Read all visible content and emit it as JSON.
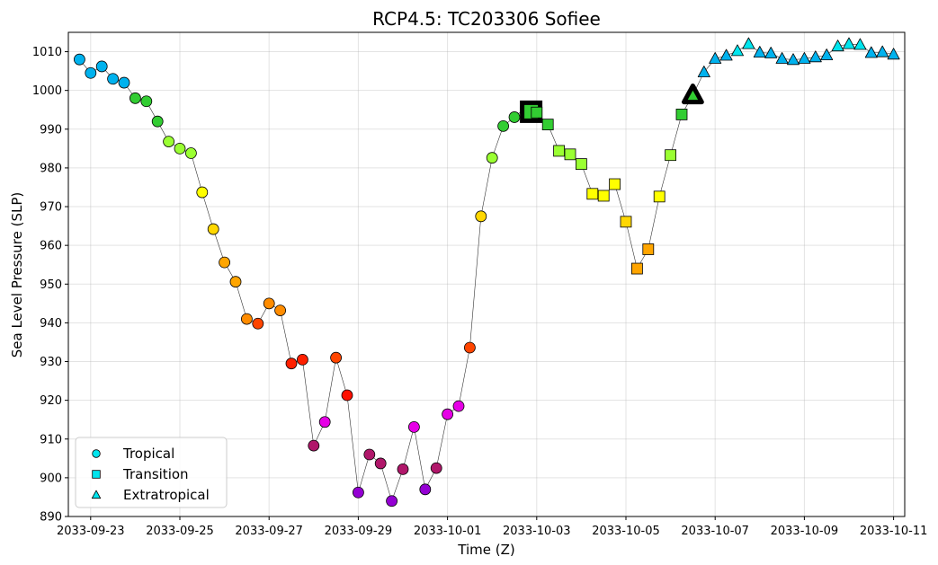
{
  "chart_data": {
    "type": "scatter",
    "title": "RCP4.5: TC203306 Sofiee",
    "xlabel": "Time (Z)",
    "ylabel": "Sea Level Pressure (SLP)",
    "xlim": [
      "2033-09-22T12:00",
      "2033-10-11T06:00"
    ],
    "ylim": [
      890,
      1015
    ],
    "x_ticks": [
      "2033-09-23",
      "2033-09-25",
      "2033-09-27",
      "2033-09-29",
      "2033-10-01",
      "2033-10-03",
      "2033-10-05",
      "2033-10-07",
      "2033-10-09",
      "2033-10-11"
    ],
    "y_ticks": [
      890,
      900,
      910,
      920,
      930,
      940,
      950,
      960,
      970,
      980,
      990,
      1000,
      1010
    ],
    "grid": true,
    "legend": {
      "placement": "lower-left",
      "entries": [
        {
          "label": "Tropical",
          "marker": "circle"
        },
        {
          "label": "Transition",
          "marker": "square"
        },
        {
          "label": "Extratropical",
          "marker": "triangle"
        }
      ],
      "color": "#00e5ee"
    },
    "line_color": "#333333",
    "highlight_color": "#000000",
    "series": [
      {
        "phase": "Tropical",
        "marker": "circle",
        "points": [
          {
            "t": "2033-09-22T18:00",
            "slp": 1008.0,
            "color": "#00b2ee"
          },
          {
            "t": "2033-09-23T00:00",
            "slp": 1004.5,
            "color": "#00b2ee"
          },
          {
            "t": "2033-09-23T06:00",
            "slp": 1006.2,
            "color": "#00b2ee"
          },
          {
            "t": "2033-09-23T12:00",
            "slp": 1003.0,
            "color": "#00b2ee"
          },
          {
            "t": "2033-09-23T18:00",
            "slp": 1002.0,
            "color": "#00b2ee"
          },
          {
            "t": "2033-09-24T00:00",
            "slp": 998.0,
            "color": "#32cd32"
          },
          {
            "t": "2033-09-24T06:00",
            "slp": 997.2,
            "color": "#32cd32"
          },
          {
            "t": "2033-09-24T12:00",
            "slp": 992.0,
            "color": "#32cd32"
          },
          {
            "t": "2033-09-24T18:00",
            "slp": 986.8,
            "color": "#9aff32"
          },
          {
            "t": "2033-09-25T00:00",
            "slp": 985.0,
            "color": "#9aff32"
          },
          {
            "t": "2033-09-25T06:00",
            "slp": 983.8,
            "color": "#9aff32"
          },
          {
            "t": "2033-09-25T12:00",
            "slp": 973.7,
            "color": "#ffff00"
          },
          {
            "t": "2033-09-25T18:00",
            "slp": 964.2,
            "color": "#ffd700"
          },
          {
            "t": "2033-09-26T00:00",
            "slp": 955.6,
            "color": "#ffa500"
          },
          {
            "t": "2033-09-26T06:00",
            "slp": 950.6,
            "color": "#ffa500"
          },
          {
            "t": "2033-09-26T12:00",
            "slp": 941.0,
            "color": "#ff8c00"
          },
          {
            "t": "2033-09-26T18:00",
            "slp": 939.8,
            "color": "#ff4500"
          },
          {
            "t": "2033-09-27T00:00",
            "slp": 945.0,
            "color": "#ff8c00"
          },
          {
            "t": "2033-09-27T06:00",
            "slp": 943.2,
            "color": "#ff8c00"
          },
          {
            "t": "2033-09-27T12:00",
            "slp": 929.5,
            "color": "#ff2000"
          },
          {
            "t": "2033-09-27T18:00",
            "slp": 930.5,
            "color": "#ff2000"
          },
          {
            "t": "2033-09-28T00:00",
            "slp": 908.3,
            "color": "#b0176a"
          },
          {
            "t": "2033-09-28T06:00",
            "slp": 914.4,
            "color": "#e600e6"
          },
          {
            "t": "2033-09-28T12:00",
            "slp": 931.0,
            "color": "#ff4500"
          },
          {
            "t": "2033-09-28T18:00",
            "slp": 921.3,
            "color": "#ff1000"
          },
          {
            "t": "2033-09-29T00:00",
            "slp": 896.2,
            "color": "#9400d3"
          },
          {
            "t": "2033-09-29T06:00",
            "slp": 906.0,
            "color": "#b0176a"
          },
          {
            "t": "2033-09-29T12:00",
            "slp": 903.7,
            "color": "#b0176a"
          },
          {
            "t": "2033-09-29T18:00",
            "slp": 894.0,
            "color": "#9400d3"
          },
          {
            "t": "2033-09-30T00:00",
            "slp": 902.2,
            "color": "#b0176a"
          },
          {
            "t": "2033-09-30T06:00",
            "slp": 913.1,
            "color": "#e600e6"
          },
          {
            "t": "2033-09-30T12:00",
            "slp": 897.0,
            "color": "#9400d3"
          },
          {
            "t": "2033-09-30T18:00",
            "slp": 902.5,
            "color": "#b0176a"
          },
          {
            "t": "2033-10-01T00:00",
            "slp": 916.4,
            "color": "#e600e6"
          },
          {
            "t": "2033-10-01T06:00",
            "slp": 918.5,
            "color": "#e600e6"
          },
          {
            "t": "2033-10-01T12:00",
            "slp": 933.6,
            "color": "#ff4500"
          },
          {
            "t": "2033-10-01T18:00",
            "slp": 967.5,
            "color": "#ffd700"
          },
          {
            "t": "2033-10-02T00:00",
            "slp": 982.6,
            "color": "#9aff32"
          },
          {
            "t": "2033-10-02T06:00",
            "slp": 990.8,
            "color": "#32cd32"
          },
          {
            "t": "2033-10-02T12:00",
            "slp": 993.1,
            "color": "#32cd32"
          },
          {
            "t": "2033-10-02T18:00",
            "slp": 995.5,
            "color": "#32cd32"
          }
        ]
      },
      {
        "phase": "Transition",
        "marker": "square",
        "points": [
          {
            "t": "2033-10-02T21:00",
            "slp": 994.5,
            "color": "#32cd32",
            "highlight": true
          },
          {
            "t": "2033-10-03T00:00",
            "slp": 994.3,
            "color": "#32cd32"
          },
          {
            "t": "2033-10-03T06:00",
            "slp": 991.2,
            "color": "#32cd32"
          },
          {
            "t": "2033-10-03T12:00",
            "slp": 984.4,
            "color": "#9aff32"
          },
          {
            "t": "2033-10-03T18:00",
            "slp": 983.5,
            "color": "#9aff32"
          },
          {
            "t": "2033-10-04T00:00",
            "slp": 981.0,
            "color": "#9aff32"
          },
          {
            "t": "2033-10-04T06:00",
            "slp": 973.3,
            "color": "#ffff00"
          },
          {
            "t": "2033-10-04T12:00",
            "slp": 972.8,
            "color": "#ffff00"
          },
          {
            "t": "2033-10-04T18:00",
            "slp": 975.8,
            "color": "#ffff00"
          },
          {
            "t": "2033-10-05T00:00",
            "slp": 966.1,
            "color": "#ffd700"
          },
          {
            "t": "2033-10-05T06:00",
            "slp": 954.0,
            "color": "#ffa500"
          },
          {
            "t": "2033-10-05T12:00",
            "slp": 959.0,
            "color": "#ffa500"
          },
          {
            "t": "2033-10-05T18:00",
            "slp": 972.6,
            "color": "#ffff00"
          },
          {
            "t": "2033-10-06T00:00",
            "slp": 983.3,
            "color": "#9aff32"
          },
          {
            "t": "2033-10-06T06:00",
            "slp": 993.8,
            "color": "#32cd32"
          }
        ]
      },
      {
        "phase": "Extratropical",
        "marker": "triangle",
        "points": [
          {
            "t": "2033-10-06T12:00",
            "slp": 998.8,
            "color": "#32cd32",
            "highlight": true
          },
          {
            "t": "2033-10-06T18:00",
            "slp": 1004.7,
            "color": "#00b2ee"
          },
          {
            "t": "2033-10-07T00:00",
            "slp": 1008.2,
            "color": "#00b2ee"
          },
          {
            "t": "2033-10-07T06:00",
            "slp": 1009.0,
            "color": "#00b2ee"
          },
          {
            "t": "2033-10-07T12:00",
            "slp": 1010.2,
            "color": "#00e5ee"
          },
          {
            "t": "2033-10-07T18:00",
            "slp": 1012.0,
            "color": "#00e5ee"
          },
          {
            "t": "2033-10-08T00:00",
            "slp": 1009.8,
            "color": "#00b2ee"
          },
          {
            "t": "2033-10-08T06:00",
            "slp": 1009.6,
            "color": "#00b2ee"
          },
          {
            "t": "2033-10-08T12:00",
            "slp": 1008.2,
            "color": "#00b2ee"
          },
          {
            "t": "2033-10-08T18:00",
            "slp": 1007.9,
            "color": "#00b2ee"
          },
          {
            "t": "2033-10-09T00:00",
            "slp": 1008.2,
            "color": "#00b2ee"
          },
          {
            "t": "2033-10-09T06:00",
            "slp": 1008.6,
            "color": "#00b2ee"
          },
          {
            "t": "2033-10-09T12:00",
            "slp": 1009.1,
            "color": "#00b2ee"
          },
          {
            "t": "2033-10-09T18:00",
            "slp": 1011.4,
            "color": "#00e5ee"
          },
          {
            "t": "2033-10-10T00:00",
            "slp": 1012.0,
            "color": "#00e5ee"
          },
          {
            "t": "2033-10-10T06:00",
            "slp": 1011.8,
            "color": "#00e5ee"
          },
          {
            "t": "2033-10-10T12:00",
            "slp": 1009.7,
            "color": "#00b2ee"
          },
          {
            "t": "2033-10-10T18:00",
            "slp": 1009.9,
            "color": "#00b2ee"
          },
          {
            "t": "2033-10-11T00:00",
            "slp": 1009.3,
            "color": "#00b2ee"
          }
        ]
      }
    ]
  }
}
